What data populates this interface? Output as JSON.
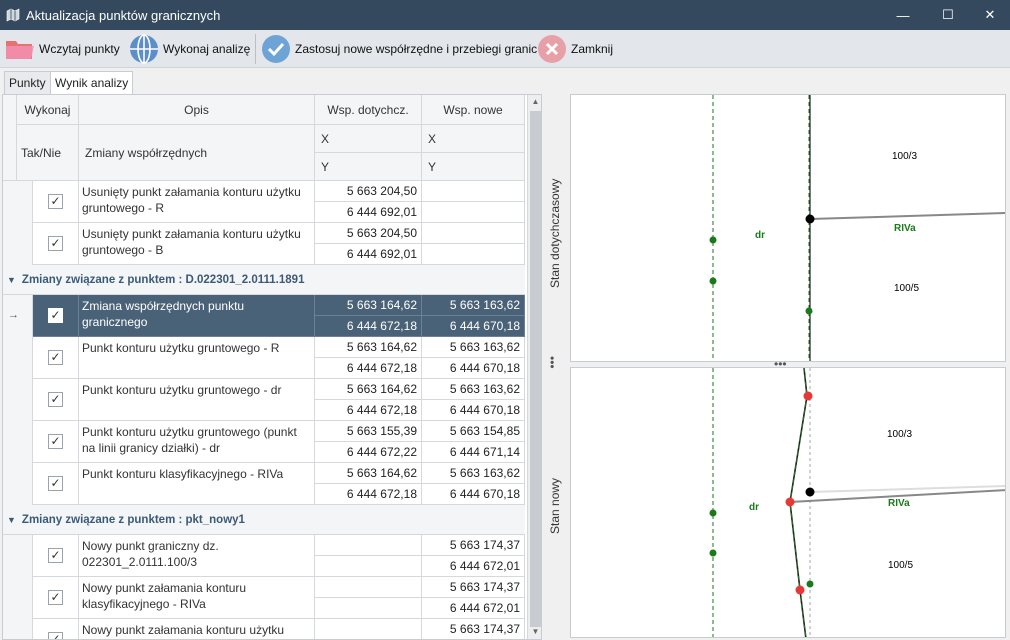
{
  "window": {
    "title": "Aktualizacja punktów granicznych",
    "minimize_glyph": "—",
    "maximize_glyph": "☐",
    "close_glyph": "✕"
  },
  "toolbar": {
    "load_label": "Wczytaj punkty",
    "analyze_label": "Wykonaj analizę",
    "apply_label": "Zastosuj nowe współrzędne i przebiegi granic",
    "close_label": "Zamknij"
  },
  "tabs": [
    {
      "label": "Punkty"
    },
    {
      "label": "Wynik analizy"
    }
  ],
  "grid": {
    "headers": {
      "wykonaj": "Wykonaj",
      "opis": "Opis",
      "wsp_old": "Wsp. dotychcz.",
      "wsp_new": "Wsp. nowe",
      "taknie": "Tak/Nie",
      "zmiany": "Zmiany współrzędnych",
      "x_old": "X",
      "x_new": "X",
      "y_old": "Y",
      "y_new": "Y"
    },
    "rows": [
      {
        "checked": true,
        "desc": "Usunięty punkt załamania konturu użytku gruntowego - R",
        "x_old": "5 663 204,50",
        "y_old": "6 444 692,01",
        "x_new": "",
        "y_new": ""
      },
      {
        "checked": true,
        "desc": "Usunięty punkt załamania konturu użytku gruntowego - B",
        "x_old": "5 663 204,50",
        "y_old": "6 444 692,01",
        "x_new": "",
        "y_new": ""
      },
      {
        "group": "Zmiany związane z punktem : D.022301_2.0111.1891"
      },
      {
        "checked": true,
        "selected": true,
        "marker": "→",
        "desc": "Zmiana współrzędnych punktu granicznego",
        "x_old": "5 663 164,62",
        "y_old": "6 444 672,18",
        "x_new": "5 663 163,62",
        "y_new": "6 444 670,18"
      },
      {
        "checked": true,
        "desc": "Punkt konturu użytku gruntowego - R",
        "x_old": "5 663 164,62",
        "y_old": "6 444 672,18",
        "x_new": "5 663 163,62",
        "y_new": "6 444 670,18"
      },
      {
        "checked": true,
        "desc": "Punkt konturu użytku gruntowego - dr",
        "x_old": "5 663 164,62",
        "y_old": "6 444 672,18",
        "x_new": "5 663 163,62",
        "y_new": "6 444 670,18"
      },
      {
        "checked": true,
        "desc": "Punkt konturu użytku gruntowego (punkt na linii granicy działki) - dr",
        "x_old": "5 663 155,39",
        "y_old": "6 444 672,22",
        "x_new": "5 663 154,85",
        "y_new": "6 444 671,14"
      },
      {
        "checked": true,
        "desc": "Punkt konturu klasyfikacyjnego - RIVa",
        "x_old": "5 663 164,62",
        "y_old": "6 444 672,18",
        "x_new": "5 663 163,62",
        "y_new": "6 444 670,18"
      },
      {
        "group": "Zmiany związane z punktem : pkt_nowy1"
      },
      {
        "checked": true,
        "desc": "Nowy punkt graniczny dz. 022301_2.0111.100/3",
        "x_old": "",
        "y_old": "",
        "x_new": "5 663 174,37",
        "y_new": "6 444 672,01"
      },
      {
        "checked": true,
        "desc": "Nowy punkt załamania konturu klasyfikacyjnego - RIVa",
        "x_old": "",
        "y_old": "",
        "x_new": "5 663 174,37",
        "y_new": "6 444 672,01"
      },
      {
        "checked": true,
        "desc": "Nowy punkt załamania konturu użytku",
        "x_old": "",
        "y_old": "",
        "x_new": "5 663 174,37",
        "y_new": ""
      }
    ]
  },
  "panels": {
    "top": {
      "title": "Stan dotychczasowy",
      "labels": {
        "dr": "dr",
        "p1003": "100/3",
        "riva": "RIVa",
        "p1005": "100/5"
      }
    },
    "bottom": {
      "title": "Stan nowy",
      "labels": {
        "dr": "dr",
        "p1003": "100/3",
        "riva": "RIVa",
        "p1005": "100/5"
      }
    }
  },
  "colors": {
    "titlebar": "#34495e",
    "selection": "#4a6278",
    "group_text": "#3a5a78",
    "dr_green": "#1a7a1a",
    "new_point_red": "#e53935"
  }
}
